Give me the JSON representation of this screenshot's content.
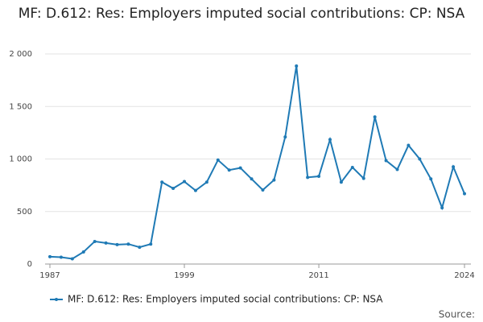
{
  "chart_data": {
    "type": "line",
    "title": "MF: D.612: Res: Employers imputed social contributions: CP: NSA",
    "x": [
      1987,
      1988,
      1989,
      1990,
      1991,
      1992,
      1993,
      1994,
      1995,
      1996,
      1997,
      1998,
      1999,
      2000,
      2001,
      2002,
      2003,
      2004,
      2005,
      2006,
      2007,
      2008,
      2009,
      2010,
      2011,
      2012,
      2013,
      2014,
      2015,
      2016,
      2017,
      2018,
      2019,
      2020,
      2021,
      2022,
      2023,
      2024
    ],
    "series": [
      {
        "name": "MF: D.612: Res: Employers imputed social contributions: CP: NSA",
        "color": "#1f7ab5",
        "values": [
          70,
          65,
          50,
          115,
          215,
          200,
          185,
          190,
          160,
          190,
          780,
          720,
          785,
          700,
          780,
          990,
          895,
          915,
          810,
          705,
          800,
          1210,
          1885,
          825,
          835,
          1185,
          780,
          920,
          815,
          1400,
          985,
          900,
          1130,
          1000,
          810,
          535,
          925,
          670
        ]
      }
    ],
    "xlim": [
      1987,
      2024
    ],
    "xticks": [
      1987,
      1999,
      2011,
      2024
    ],
    "ylim": [
      0,
      2000
    ],
    "yticks": [
      0,
      {
        "value": 500,
        "label": "500"
      },
      {
        "value": 1000,
        "label": "1 000"
      },
      {
        "value": 1500,
        "label": "1 500"
      },
      {
        "value": 2000,
        "label": "2 000"
      }
    ],
    "grid": true,
    "legend": "bottom",
    "source": "Source:"
  }
}
